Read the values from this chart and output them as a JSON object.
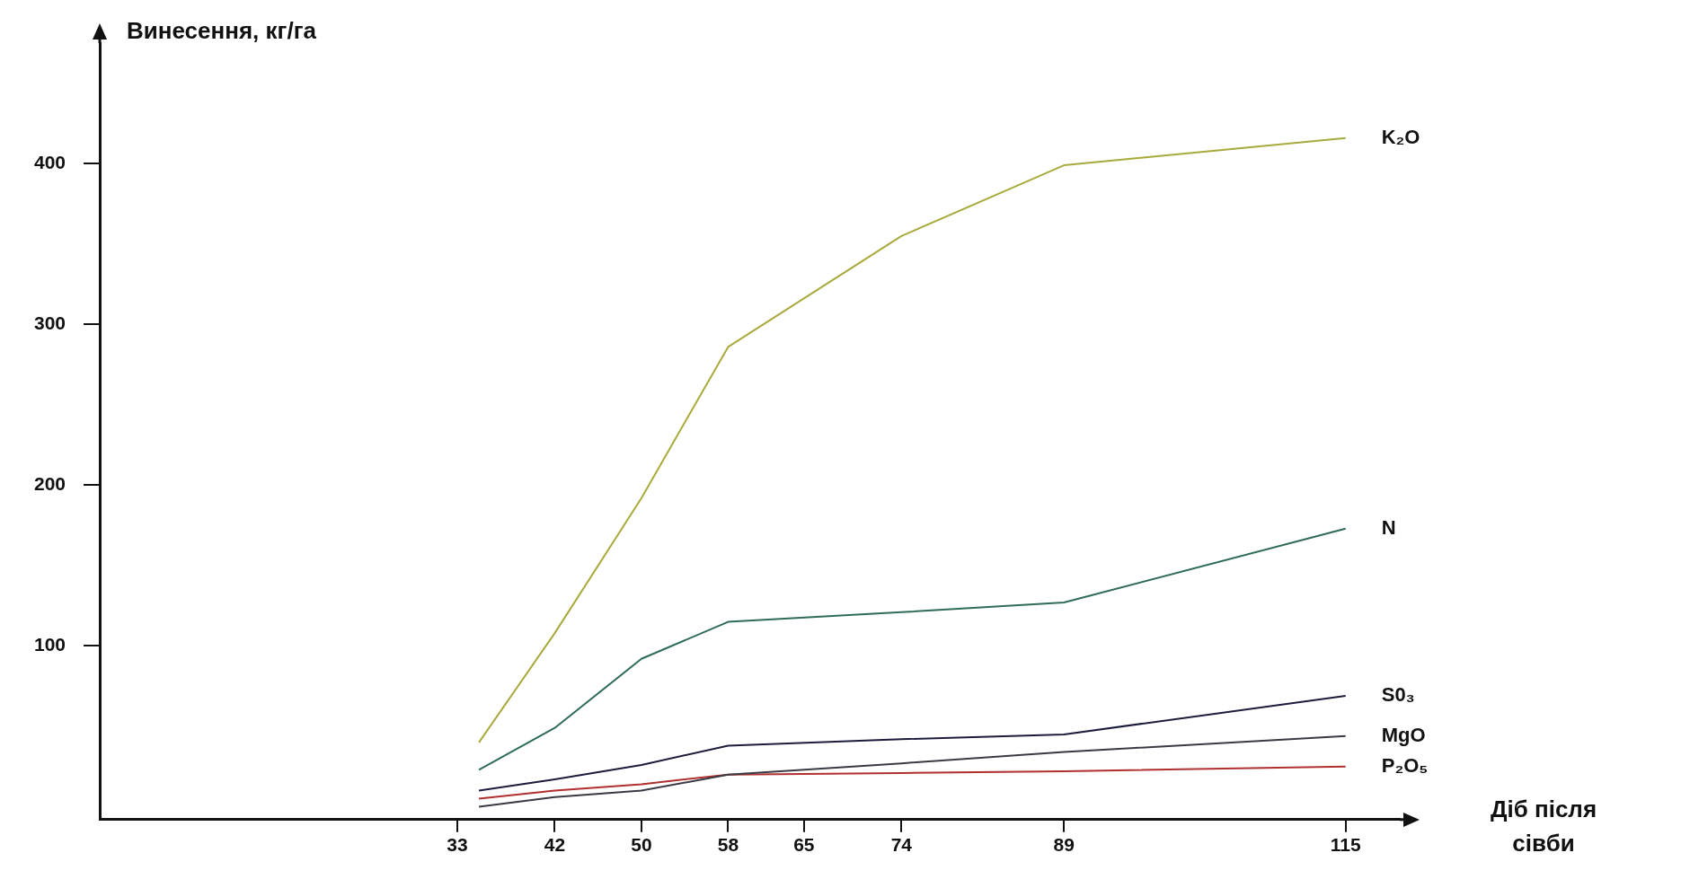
{
  "chart_data": {
    "type": "line",
    "ylabel": "Винесення, кг/га",
    "xlabel": "Діб після сівби",
    "x": [
      35,
      42,
      50,
      58,
      74,
      89,
      115
    ],
    "series": [
      {
        "name": "K₂O",
        "color": "#a8aa3c",
        "values": [
          40,
          108,
          192,
          286,
          355,
          399,
          416
        ]
      },
      {
        "name": "N",
        "color": "#2e6b5a",
        "values": [
          23,
          49,
          92,
          115,
          121,
          127,
          173
        ]
      },
      {
        "name": "S0₃",
        "color": "#1c1c3c",
        "values": [
          10,
          17,
          26,
          38,
          42,
          45,
          69
        ]
      },
      {
        "name": "MgO",
        "color": "#3a3a44",
        "values": [
          0,
          6,
          10,
          20,
          27,
          34,
          44
        ]
      },
      {
        "name": "P₂O₅",
        "color": "#b03030",
        "values": [
          5,
          10,
          14,
          20,
          21,
          22,
          25
        ]
      }
    ],
    "xlim": [
      0,
      120
    ],
    "xticks": [
      33,
      42,
      50,
      58,
      65,
      74,
      89,
      115
    ],
    "ylim": [
      -8,
      475
    ],
    "yticks": [
      100,
      200,
      300,
      400
    ],
    "grid": false,
    "legend": false,
    "marker": "none",
    "line_style": "solid"
  }
}
